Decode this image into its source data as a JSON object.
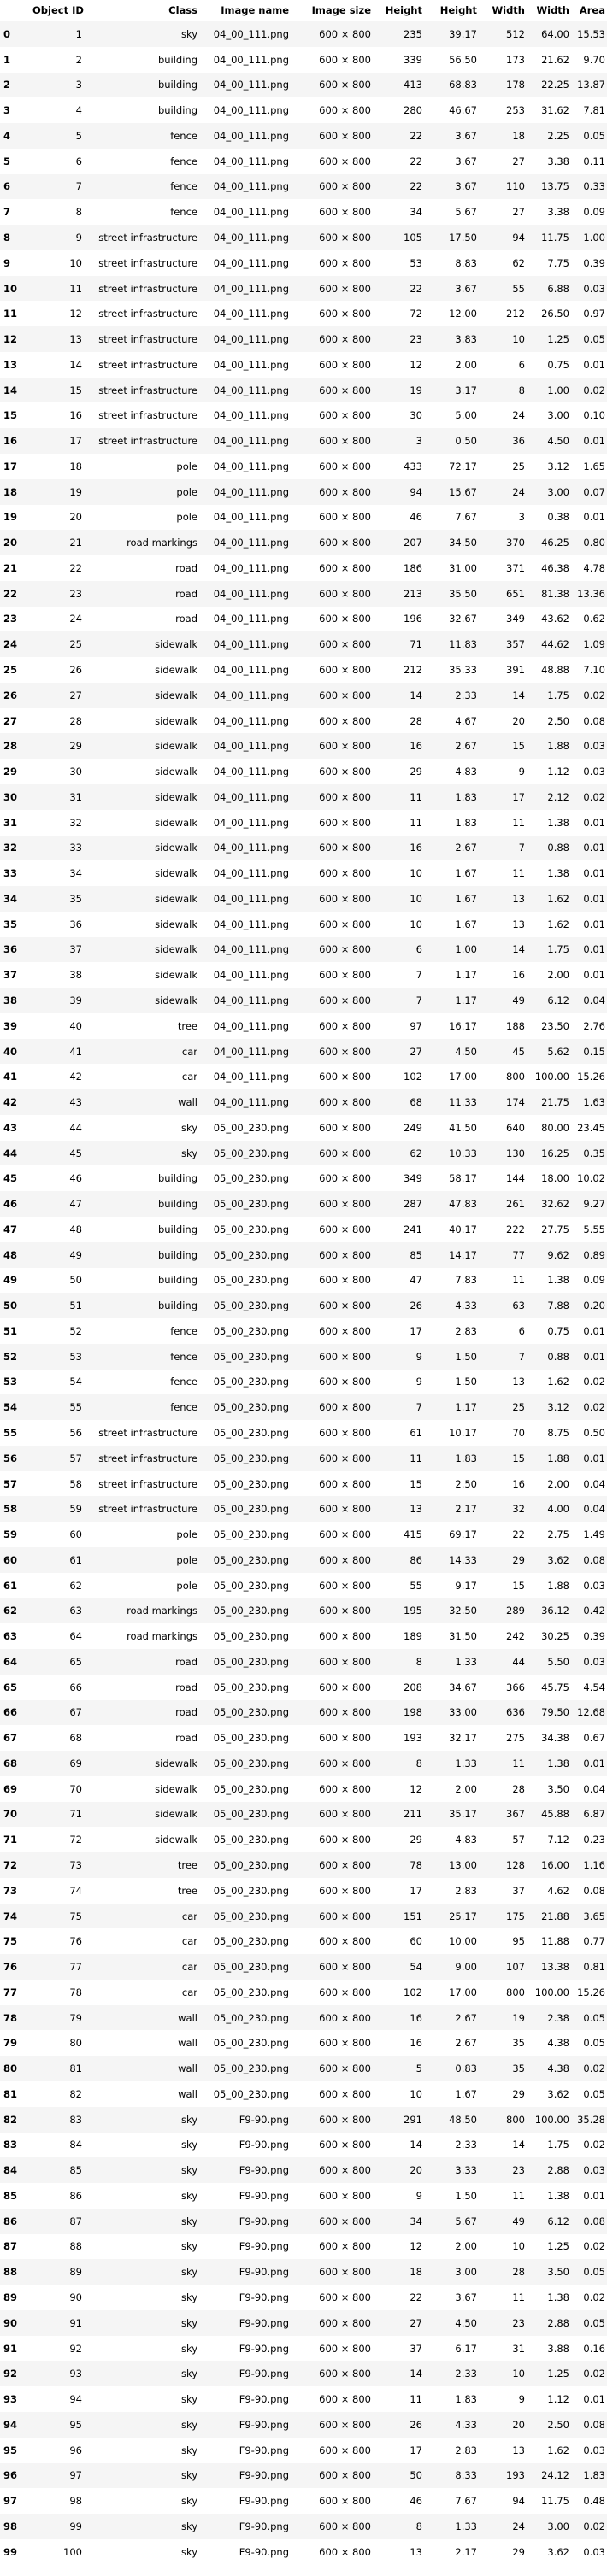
{
  "columns": [
    "",
    "Object ID",
    "Class",
    "Image name",
    "Image size",
    "Height",
    "Height",
    "Width",
    "Width",
    "Area"
  ],
  "rows": [
    [
      "0",
      "1",
      "sky",
      "04_00_111.png",
      "600 × 800",
      "235",
      "39.17",
      "512",
      "64.00",
      "15.53"
    ],
    [
      "1",
      "2",
      "building",
      "04_00_111.png",
      "600 × 800",
      "339",
      "56.50",
      "173",
      "21.62",
      "9.70"
    ],
    [
      "2",
      "3",
      "building",
      "04_00_111.png",
      "600 × 800",
      "413",
      "68.83",
      "178",
      "22.25",
      "13.87"
    ],
    [
      "3",
      "4",
      "building",
      "04_00_111.png",
      "600 × 800",
      "280",
      "46.67",
      "253",
      "31.62",
      "7.81"
    ],
    [
      "4",
      "5",
      "fence",
      "04_00_111.png",
      "600 × 800",
      "22",
      "3.67",
      "18",
      "2.25",
      "0.05"
    ],
    [
      "5",
      "6",
      "fence",
      "04_00_111.png",
      "600 × 800",
      "22",
      "3.67",
      "27",
      "3.38",
      "0.11"
    ],
    [
      "6",
      "7",
      "fence",
      "04_00_111.png",
      "600 × 800",
      "22",
      "3.67",
      "110",
      "13.75",
      "0.33"
    ],
    [
      "7",
      "8",
      "fence",
      "04_00_111.png",
      "600 × 800",
      "34",
      "5.67",
      "27",
      "3.38",
      "0.09"
    ],
    [
      "8",
      "9",
      "street infrastructure",
      "04_00_111.png",
      "600 × 800",
      "105",
      "17.50",
      "94",
      "11.75",
      "1.00"
    ],
    [
      "9",
      "10",
      "street infrastructure",
      "04_00_111.png",
      "600 × 800",
      "53",
      "8.83",
      "62",
      "7.75",
      "0.39"
    ],
    [
      "10",
      "11",
      "street infrastructure",
      "04_00_111.png",
      "600 × 800",
      "22",
      "3.67",
      "55",
      "6.88",
      "0.03"
    ],
    [
      "11",
      "12",
      "street infrastructure",
      "04_00_111.png",
      "600 × 800",
      "72",
      "12.00",
      "212",
      "26.50",
      "0.97"
    ],
    [
      "12",
      "13",
      "street infrastructure",
      "04_00_111.png",
      "600 × 800",
      "23",
      "3.83",
      "10",
      "1.25",
      "0.05"
    ],
    [
      "13",
      "14",
      "street infrastructure",
      "04_00_111.png",
      "600 × 800",
      "12",
      "2.00",
      "6",
      "0.75",
      "0.01"
    ],
    [
      "14",
      "15",
      "street infrastructure",
      "04_00_111.png",
      "600 × 800",
      "19",
      "3.17",
      "8",
      "1.00",
      "0.02"
    ],
    [
      "15",
      "16",
      "street infrastructure",
      "04_00_111.png",
      "600 × 800",
      "30",
      "5.00",
      "24",
      "3.00",
      "0.10"
    ],
    [
      "16",
      "17",
      "street infrastructure",
      "04_00_111.png",
      "600 × 800",
      "3",
      "0.50",
      "36",
      "4.50",
      "0.01"
    ],
    [
      "17",
      "18",
      "pole",
      "04_00_111.png",
      "600 × 800",
      "433",
      "72.17",
      "25",
      "3.12",
      "1.65"
    ],
    [
      "18",
      "19",
      "pole",
      "04_00_111.png",
      "600 × 800",
      "94",
      "15.67",
      "24",
      "3.00",
      "0.07"
    ],
    [
      "19",
      "20",
      "pole",
      "04_00_111.png",
      "600 × 800",
      "46",
      "7.67",
      "3",
      "0.38",
      "0.01"
    ],
    [
      "20",
      "21",
      "road markings",
      "04_00_111.png",
      "600 × 800",
      "207",
      "34.50",
      "370",
      "46.25",
      "0.80"
    ],
    [
      "21",
      "22",
      "road",
      "04_00_111.png",
      "600 × 800",
      "186",
      "31.00",
      "371",
      "46.38",
      "4.78"
    ],
    [
      "22",
      "23",
      "road",
      "04_00_111.png",
      "600 × 800",
      "213",
      "35.50",
      "651",
      "81.38",
      "13.36"
    ],
    [
      "23",
      "24",
      "road",
      "04_00_111.png",
      "600 × 800",
      "196",
      "32.67",
      "349",
      "43.62",
      "0.62"
    ],
    [
      "24",
      "25",
      "sidewalk",
      "04_00_111.png",
      "600 × 800",
      "71",
      "11.83",
      "357",
      "44.62",
      "1.09"
    ],
    [
      "25",
      "26",
      "sidewalk",
      "04_00_111.png",
      "600 × 800",
      "212",
      "35.33",
      "391",
      "48.88",
      "7.10"
    ],
    [
      "26",
      "27",
      "sidewalk",
      "04_00_111.png",
      "600 × 800",
      "14",
      "2.33",
      "14",
      "1.75",
      "0.02"
    ],
    [
      "27",
      "28",
      "sidewalk",
      "04_00_111.png",
      "600 × 800",
      "28",
      "4.67",
      "20",
      "2.50",
      "0.08"
    ],
    [
      "28",
      "29",
      "sidewalk",
      "04_00_111.png",
      "600 × 800",
      "16",
      "2.67",
      "15",
      "1.88",
      "0.03"
    ],
    [
      "29",
      "30",
      "sidewalk",
      "04_00_111.png",
      "600 × 800",
      "29",
      "4.83",
      "9",
      "1.12",
      "0.03"
    ],
    [
      "30",
      "31",
      "sidewalk",
      "04_00_111.png",
      "600 × 800",
      "11",
      "1.83",
      "17",
      "2.12",
      "0.02"
    ],
    [
      "31",
      "32",
      "sidewalk",
      "04_00_111.png",
      "600 × 800",
      "11",
      "1.83",
      "11",
      "1.38",
      "0.01"
    ],
    [
      "32",
      "33",
      "sidewalk",
      "04_00_111.png",
      "600 × 800",
      "16",
      "2.67",
      "7",
      "0.88",
      "0.01"
    ],
    [
      "33",
      "34",
      "sidewalk",
      "04_00_111.png",
      "600 × 800",
      "10",
      "1.67",
      "11",
      "1.38",
      "0.01"
    ],
    [
      "34",
      "35",
      "sidewalk",
      "04_00_111.png",
      "600 × 800",
      "10",
      "1.67",
      "13",
      "1.62",
      "0.01"
    ],
    [
      "35",
      "36",
      "sidewalk",
      "04_00_111.png",
      "600 × 800",
      "10",
      "1.67",
      "13",
      "1.62",
      "0.01"
    ],
    [
      "36",
      "37",
      "sidewalk",
      "04_00_111.png",
      "600 × 800",
      "6",
      "1.00",
      "14",
      "1.75",
      "0.01"
    ],
    [
      "37",
      "38",
      "sidewalk",
      "04_00_111.png",
      "600 × 800",
      "7",
      "1.17",
      "16",
      "2.00",
      "0.01"
    ],
    [
      "38",
      "39",
      "sidewalk",
      "04_00_111.png",
      "600 × 800",
      "7",
      "1.17",
      "49",
      "6.12",
      "0.04"
    ],
    [
      "39",
      "40",
      "tree",
      "04_00_111.png",
      "600 × 800",
      "97",
      "16.17",
      "188",
      "23.50",
      "2.76"
    ],
    [
      "40",
      "41",
      "car",
      "04_00_111.png",
      "600 × 800",
      "27",
      "4.50",
      "45",
      "5.62",
      "0.15"
    ],
    [
      "41",
      "42",
      "car",
      "04_00_111.png",
      "600 × 800",
      "102",
      "17.00",
      "800",
      "100.00",
      "15.26"
    ],
    [
      "42",
      "43",
      "wall",
      "04_00_111.png",
      "600 × 800",
      "68",
      "11.33",
      "174",
      "21.75",
      "1.63"
    ],
    [
      "43",
      "44",
      "sky",
      "05_00_230.png",
      "600 × 800",
      "249",
      "41.50",
      "640",
      "80.00",
      "23.45"
    ],
    [
      "44",
      "45",
      "sky",
      "05_00_230.png",
      "600 × 800",
      "62",
      "10.33",
      "130",
      "16.25",
      "0.35"
    ],
    [
      "45",
      "46",
      "building",
      "05_00_230.png",
      "600 × 800",
      "349",
      "58.17",
      "144",
      "18.00",
      "10.02"
    ],
    [
      "46",
      "47",
      "building",
      "05_00_230.png",
      "600 × 800",
      "287",
      "47.83",
      "261",
      "32.62",
      "9.27"
    ],
    [
      "47",
      "48",
      "building",
      "05_00_230.png",
      "600 × 800",
      "241",
      "40.17",
      "222",
      "27.75",
      "5.55"
    ],
    [
      "48",
      "49",
      "building",
      "05_00_230.png",
      "600 × 800",
      "85",
      "14.17",
      "77",
      "9.62",
      "0.89"
    ],
    [
      "49",
      "50",
      "building",
      "05_00_230.png",
      "600 × 800",
      "47",
      "7.83",
      "11",
      "1.38",
      "0.09"
    ],
    [
      "50",
      "51",
      "building",
      "05_00_230.png",
      "600 × 800",
      "26",
      "4.33",
      "63",
      "7.88",
      "0.20"
    ],
    [
      "51",
      "52",
      "fence",
      "05_00_230.png",
      "600 × 800",
      "17",
      "2.83",
      "6",
      "0.75",
      "0.01"
    ],
    [
      "52",
      "53",
      "fence",
      "05_00_230.png",
      "600 × 800",
      "9",
      "1.50",
      "7",
      "0.88",
      "0.01"
    ],
    [
      "53",
      "54",
      "fence",
      "05_00_230.png",
      "600 × 800",
      "9",
      "1.50",
      "13",
      "1.62",
      "0.02"
    ],
    [
      "54",
      "55",
      "fence",
      "05_00_230.png",
      "600 × 800",
      "7",
      "1.17",
      "25",
      "3.12",
      "0.02"
    ],
    [
      "55",
      "56",
      "street infrastructure",
      "05_00_230.png",
      "600 × 800",
      "61",
      "10.17",
      "70",
      "8.75",
      "0.50"
    ],
    [
      "56",
      "57",
      "street infrastructure",
      "05_00_230.png",
      "600 × 800",
      "11",
      "1.83",
      "15",
      "1.88",
      "0.01"
    ],
    [
      "57",
      "58",
      "street infrastructure",
      "05_00_230.png",
      "600 × 800",
      "15",
      "2.50",
      "16",
      "2.00",
      "0.04"
    ],
    [
      "58",
      "59",
      "street infrastructure",
      "05_00_230.png",
      "600 × 800",
      "13",
      "2.17",
      "32",
      "4.00",
      "0.04"
    ],
    [
      "59",
      "60",
      "pole",
      "05_00_230.png",
      "600 × 800",
      "415",
      "69.17",
      "22",
      "2.75",
      "1.49"
    ],
    [
      "60",
      "61",
      "pole",
      "05_00_230.png",
      "600 × 800",
      "86",
      "14.33",
      "29",
      "3.62",
      "0.08"
    ],
    [
      "61",
      "62",
      "pole",
      "05_00_230.png",
      "600 × 800",
      "55",
      "9.17",
      "15",
      "1.88",
      "0.03"
    ],
    [
      "62",
      "63",
      "road markings",
      "05_00_230.png",
      "600 × 800",
      "195",
      "32.50",
      "289",
      "36.12",
      "0.42"
    ],
    [
      "63",
      "64",
      "road markings",
      "05_00_230.png",
      "600 × 800",
      "189",
      "31.50",
      "242",
      "30.25",
      "0.39"
    ],
    [
      "64",
      "65",
      "road",
      "05_00_230.png",
      "600 × 800",
      "8",
      "1.33",
      "44",
      "5.50",
      "0.03"
    ],
    [
      "65",
      "66",
      "road",
      "05_00_230.png",
      "600 × 800",
      "208",
      "34.67",
      "366",
      "45.75",
      "4.54"
    ],
    [
      "66",
      "67",
      "road",
      "05_00_230.png",
      "600 × 800",
      "198",
      "33.00",
      "636",
      "79.50",
      "12.68"
    ],
    [
      "67",
      "68",
      "road",
      "05_00_230.png",
      "600 × 800",
      "193",
      "32.17",
      "275",
      "34.38",
      "0.67"
    ],
    [
      "68",
      "69",
      "sidewalk",
      "05_00_230.png",
      "600 × 800",
      "8",
      "1.33",
      "11",
      "1.38",
      "0.01"
    ],
    [
      "69",
      "70",
      "sidewalk",
      "05_00_230.png",
      "600 × 800",
      "12",
      "2.00",
      "28",
      "3.50",
      "0.04"
    ],
    [
      "70",
      "71",
      "sidewalk",
      "05_00_230.png",
      "600 × 800",
      "211",
      "35.17",
      "367",
      "45.88",
      "6.87"
    ],
    [
      "71",
      "72",
      "sidewalk",
      "05_00_230.png",
      "600 × 800",
      "29",
      "4.83",
      "57",
      "7.12",
      "0.23"
    ],
    [
      "72",
      "73",
      "tree",
      "05_00_230.png",
      "600 × 800",
      "78",
      "13.00",
      "128",
      "16.00",
      "1.16"
    ],
    [
      "73",
      "74",
      "tree",
      "05_00_230.png",
      "600 × 800",
      "17",
      "2.83",
      "37",
      "4.62",
      "0.08"
    ],
    [
      "74",
      "75",
      "car",
      "05_00_230.png",
      "600 × 800",
      "151",
      "25.17",
      "175",
      "21.88",
      "3.65"
    ],
    [
      "75",
      "76",
      "car",
      "05_00_230.png",
      "600 × 800",
      "60",
      "10.00",
      "95",
      "11.88",
      "0.77"
    ],
    [
      "76",
      "77",
      "car",
      "05_00_230.png",
      "600 × 800",
      "54",
      "9.00",
      "107",
      "13.38",
      "0.81"
    ],
    [
      "77",
      "78",
      "car",
      "05_00_230.png",
      "600 × 800",
      "102",
      "17.00",
      "800",
      "100.00",
      "15.26"
    ],
    [
      "78",
      "79",
      "wall",
      "05_00_230.png",
      "600 × 800",
      "16",
      "2.67",
      "19",
      "2.38",
      "0.05"
    ],
    [
      "79",
      "80",
      "wall",
      "05_00_230.png",
      "600 × 800",
      "16",
      "2.67",
      "35",
      "4.38",
      "0.05"
    ],
    [
      "80",
      "81",
      "wall",
      "05_00_230.png",
      "600 × 800",
      "5",
      "0.83",
      "35",
      "4.38",
      "0.02"
    ],
    [
      "81",
      "82",
      "wall",
      "05_00_230.png",
      "600 × 800",
      "10",
      "1.67",
      "29",
      "3.62",
      "0.05"
    ],
    [
      "82",
      "83",
      "sky",
      "F9-90.png",
      "600 × 800",
      "291",
      "48.50",
      "800",
      "100.00",
      "35.28"
    ],
    [
      "83",
      "84",
      "sky",
      "F9-90.png",
      "600 × 800",
      "14",
      "2.33",
      "14",
      "1.75",
      "0.02"
    ],
    [
      "84",
      "85",
      "sky",
      "F9-90.png",
      "600 × 800",
      "20",
      "3.33",
      "23",
      "2.88",
      "0.03"
    ],
    [
      "85",
      "86",
      "sky",
      "F9-90.png",
      "600 × 800",
      "9",
      "1.50",
      "11",
      "1.38",
      "0.01"
    ],
    [
      "86",
      "87",
      "sky",
      "F9-90.png",
      "600 × 800",
      "34",
      "5.67",
      "49",
      "6.12",
      "0.08"
    ],
    [
      "87",
      "88",
      "sky",
      "F9-90.png",
      "600 × 800",
      "12",
      "2.00",
      "10",
      "1.25",
      "0.02"
    ],
    [
      "88",
      "89",
      "sky",
      "F9-90.png",
      "600 × 800",
      "18",
      "3.00",
      "28",
      "3.50",
      "0.05"
    ],
    [
      "89",
      "90",
      "sky",
      "F9-90.png",
      "600 × 800",
      "22",
      "3.67",
      "11",
      "1.38",
      "0.02"
    ],
    [
      "90",
      "91",
      "sky",
      "F9-90.png",
      "600 × 800",
      "27",
      "4.50",
      "23",
      "2.88",
      "0.05"
    ],
    [
      "91",
      "92",
      "sky",
      "F9-90.png",
      "600 × 800",
      "37",
      "6.17",
      "31",
      "3.88",
      "0.16"
    ],
    [
      "92",
      "93",
      "sky",
      "F9-90.png",
      "600 × 800",
      "14",
      "2.33",
      "10",
      "1.25",
      "0.02"
    ],
    [
      "93",
      "94",
      "sky",
      "F9-90.png",
      "600 × 800",
      "11",
      "1.83",
      "9",
      "1.12",
      "0.01"
    ],
    [
      "94",
      "95",
      "sky",
      "F9-90.png",
      "600 × 800",
      "26",
      "4.33",
      "20",
      "2.50",
      "0.08"
    ],
    [
      "95",
      "96",
      "sky",
      "F9-90.png",
      "600 × 800",
      "17",
      "2.83",
      "13",
      "1.62",
      "0.03"
    ],
    [
      "96",
      "97",
      "sky",
      "F9-90.png",
      "600 × 800",
      "50",
      "8.33",
      "193",
      "24.12",
      "1.83"
    ],
    [
      "97",
      "98",
      "sky",
      "F9-90.png",
      "600 × 800",
      "46",
      "7.67",
      "94",
      "11.75",
      "0.48"
    ],
    [
      "98",
      "99",
      "sky",
      "F9-90.png",
      "600 × 800",
      "8",
      "1.33",
      "24",
      "3.00",
      "0.02"
    ],
    [
      "99",
      "100",
      "sky",
      "F9-90.png",
      "600 × 800",
      "13",
      "2.17",
      "29",
      "3.62",
      "0.03"
    ]
  ]
}
